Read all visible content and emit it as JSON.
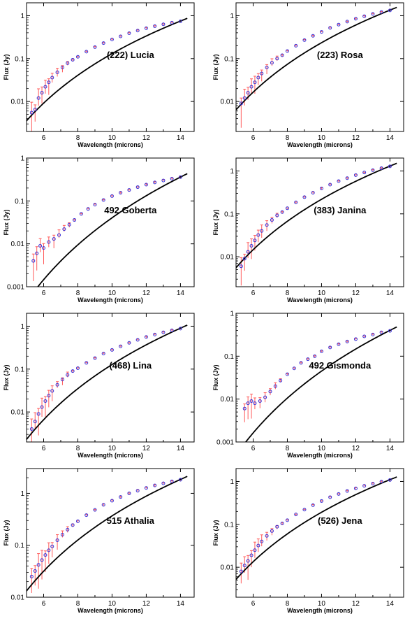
{
  "colors": {
    "model_curve": "#000000",
    "error_bars": "#ff5a5a",
    "data_points": "#3a2fd6",
    "axes": "#000000"
  },
  "chart_data": [
    {
      "type": "scatter",
      "annotation": "(222) Lucia",
      "xlabel": "Wavelength (microns)",
      "ylabel": "Flux (Jy)",
      "xlim": [
        5,
        14.8
      ],
      "ylim": [
        0.002,
        2
      ],
      "y_scale": "log",
      "x_ticks": [
        6,
        8,
        10,
        12,
        14
      ],
      "y_ticks": [
        0.01,
        0.1,
        1
      ],
      "y_tick_labels": [
        "0.01",
        "0.1",
        "1"
      ],
      "grid": false,
      "model": {
        "f14": 0.75,
        "p": 5.2
      },
      "x": [
        5.3,
        5.5,
        5.7,
        5.9,
        6.1,
        6.3,
        6.5,
        6.8,
        7.1,
        7.4,
        7.7,
        8.0,
        8.5,
        9.0,
        9.5,
        10.0,
        10.5,
        11.0,
        11.5,
        12.0,
        12.5,
        13.0,
        13.5,
        14.0
      ],
      "y": [
        0.0055,
        0.0065,
        0.012,
        0.016,
        0.022,
        0.028,
        0.036,
        0.048,
        0.062,
        0.078,
        0.094,
        0.11,
        0.145,
        0.185,
        0.23,
        0.28,
        0.33,
        0.39,
        0.45,
        0.51,
        0.57,
        0.63,
        0.69,
        0.74
      ]
    },
    {
      "type": "scatter",
      "annotation": "(223) Rosa",
      "xlabel": "Wavelength (microns)",
      "ylabel": "Flux (Jy)",
      "xlim": [
        5,
        14.8
      ],
      "ylim": [
        0.002,
        2
      ],
      "y_scale": "log",
      "x_ticks": [
        6,
        8,
        10,
        12,
        14
      ],
      "y_ticks": [
        0.01,
        0.1,
        1
      ],
      "y_tick_labels": [
        "0.01",
        "0.1",
        "1"
      ],
      "grid": false,
      "model": {
        "f14": 1.35,
        "p": 5.2
      },
      "x": [
        5.3,
        5.5,
        5.7,
        5.9,
        6.1,
        6.3,
        6.5,
        6.8,
        7.1,
        7.4,
        7.7,
        8.0,
        8.5,
        9.0,
        9.5,
        10.0,
        10.5,
        11.0,
        11.5,
        12.0,
        12.5,
        13.0,
        13.5,
        14.0
      ],
      "y": [
        0.009,
        0.012,
        0.016,
        0.022,
        0.028,
        0.036,
        0.045,
        0.062,
        0.08,
        0.1,
        0.12,
        0.15,
        0.2,
        0.27,
        0.34,
        0.42,
        0.52,
        0.62,
        0.73,
        0.85,
        0.97,
        1.1,
        1.22,
        1.33
      ]
    },
    {
      "type": "scatter",
      "annotation": "492 Goberta",
      "xlabel": "Wavelength (microns)",
      "ylabel": "Flux (Jy)",
      "xlim": [
        5,
        14.8
      ],
      "ylim": [
        0.001,
        1
      ],
      "y_scale": "log",
      "x_ticks": [
        6,
        8,
        10,
        12,
        14
      ],
      "y_ticks": [
        0.001,
        0.01,
        0.1,
        1
      ],
      "y_tick_labels": [
        "0.001",
        "0.01",
        "0.1",
        "1"
      ],
      "grid": false,
      "model": {
        "f14": 0.36,
        "p": 6.5
      },
      "x": [
        5.4,
        5.6,
        5.8,
        6.0,
        6.3,
        6.6,
        6.9,
        7.2,
        7.5,
        7.8,
        8.2,
        8.6,
        9.0,
        9.5,
        10.0,
        10.5,
        11.0,
        11.5,
        12.0,
        12.5,
        13.0,
        13.5,
        14.0
      ],
      "y": [
        0.004,
        0.006,
        0.009,
        0.008,
        0.011,
        0.013,
        0.016,
        0.022,
        0.028,
        0.036,
        0.05,
        0.065,
        0.082,
        0.105,
        0.13,
        0.155,
        0.18,
        0.21,
        0.24,
        0.27,
        0.3,
        0.33,
        0.36
      ]
    },
    {
      "type": "scatter",
      "annotation": "(383) Janina",
      "xlabel": "Wavelength (microns)",
      "ylabel": "Flux (Jy)",
      "xlim": [
        5,
        14.8
      ],
      "ylim": [
        0.002,
        2
      ],
      "y_scale": "log",
      "x_ticks": [
        6,
        8,
        10,
        12,
        14
      ],
      "y_ticks": [
        0.01,
        0.1,
        1
      ],
      "y_tick_labels": [
        "0.01",
        "0.1",
        "1"
      ],
      "grid": false,
      "model": {
        "f14": 1.3,
        "p": 5.3
      },
      "x": [
        5.3,
        5.5,
        5.7,
        5.9,
        6.1,
        6.3,
        6.5,
        6.8,
        7.1,
        7.4,
        7.7,
        8.0,
        8.5,
        9.0,
        9.5,
        10.0,
        10.5,
        11.0,
        11.5,
        12.0,
        12.5,
        13.0,
        13.5,
        14.0
      ],
      "y": [
        0.006,
        0.009,
        0.013,
        0.018,
        0.024,
        0.032,
        0.04,
        0.055,
        0.072,
        0.092,
        0.11,
        0.135,
        0.185,
        0.245,
        0.31,
        0.39,
        0.48,
        0.58,
        0.68,
        0.8,
        0.92,
        1.04,
        1.16,
        1.28
      ]
    },
    {
      "type": "scatter",
      "annotation": "(468) Lina",
      "xlabel": "Wavelength (microns)",
      "ylabel": "Flux (Jy)",
      "xlim": [
        5,
        14.8
      ],
      "ylim": [
        0.002,
        2
      ],
      "y_scale": "log",
      "x_ticks": [
        6,
        8,
        10,
        12,
        14
      ],
      "y_ticks": [
        0.01,
        0.1,
        1
      ],
      "y_tick_labels": [
        "0.01",
        "0.1",
        "1"
      ],
      "grid": false,
      "model": {
        "f14": 0.9,
        "p": 5.8
      },
      "x": [
        5.3,
        5.5,
        5.7,
        5.9,
        6.1,
        6.3,
        6.5,
        6.8,
        7.1,
        7.4,
        7.7,
        8.0,
        8.5,
        9.0,
        9.5,
        10.0,
        10.5,
        11.0,
        11.5,
        12.0,
        12.5,
        13.0,
        13.5,
        14.0
      ],
      "y": [
        0.004,
        0.006,
        0.009,
        0.013,
        0.018,
        0.024,
        0.031,
        0.043,
        0.057,
        0.073,
        0.09,
        0.105,
        0.14,
        0.18,
        0.23,
        0.28,
        0.34,
        0.41,
        0.48,
        0.56,
        0.64,
        0.72,
        0.8,
        0.88
      ]
    },
    {
      "type": "scatter",
      "annotation": "492 Gismonda",
      "xlabel": "Wavelength (microns)",
      "ylabel": "Flux (Jy)",
      "xlim": [
        5,
        14.8
      ],
      "ylim": [
        0.001,
        1
      ],
      "y_scale": "log",
      "x_ticks": [
        6,
        8,
        10,
        12,
        14
      ],
      "y_ticks": [
        0.001,
        0.01,
        0.1,
        1
      ],
      "y_tick_labels": [
        "0.001",
        "0.01",
        "0.1",
        "1"
      ],
      "grid": false,
      "model": {
        "f14": 0.4,
        "p": 6.5
      },
      "x": [
        5.5,
        5.7,
        5.9,
        6.1,
        6.4,
        6.7,
        7.0,
        7.3,
        7.6,
        8.0,
        8.4,
        8.8,
        9.2,
        9.6,
        10.0,
        10.5,
        11.0,
        11.5,
        12.0,
        12.5,
        13.0,
        13.5,
        14.0
      ],
      "y": [
        0.006,
        0.008,
        0.009,
        0.008,
        0.009,
        0.011,
        0.015,
        0.02,
        0.027,
        0.038,
        0.052,
        0.07,
        0.085,
        0.1,
        0.13,
        0.16,
        0.19,
        0.22,
        0.25,
        0.29,
        0.32,
        0.36,
        0.39
      ]
    },
    {
      "type": "scatter",
      "annotation": "515 Athalia",
      "xlabel": "Wavelength (microns)",
      "ylabel": "Flux (Jy)",
      "xlim": [
        5,
        14.8
      ],
      "ylim": [
        0.01,
        3
      ],
      "y_scale": "log",
      "x_ticks": [
        6,
        8,
        10,
        12,
        14
      ],
      "y_ticks": [
        0.01,
        0.1,
        1
      ],
      "y_tick_labels": [
        "0.01",
        "0.1",
        "1"
      ],
      "grid": false,
      "model": {
        "f14": 1.85,
        "p": 4.8
      },
      "x": [
        5.3,
        5.5,
        5.7,
        5.9,
        6.1,
        6.3,
        6.5,
        6.8,
        7.1,
        7.4,
        7.7,
        8.0,
        8.5,
        9.0,
        9.5,
        10.0,
        10.5,
        11.0,
        11.5,
        12.0,
        12.5,
        13.0,
        13.5,
        14.0
      ],
      "y": [
        0.025,
        0.032,
        0.042,
        0.052,
        0.065,
        0.08,
        0.095,
        0.125,
        0.16,
        0.2,
        0.245,
        0.29,
        0.38,
        0.48,
        0.6,
        0.72,
        0.85,
        1.0,
        1.12,
        1.27,
        1.42,
        1.56,
        1.7,
        1.83
      ]
    },
    {
      "type": "scatter",
      "annotation": "(526) Jena",
      "xlabel": "Wavelength (microns)",
      "ylabel": "Flux (Jy)",
      "xlim": [
        5,
        14.8
      ],
      "ylim": [
        0.002,
        2
      ],
      "y_scale": "log",
      "x_ticks": [
        6,
        8,
        10,
        12,
        14
      ],
      "y_ticks": [
        0.01,
        0.1,
        1
      ],
      "y_tick_labels": [
        "0.01",
        "0.1",
        "1"
      ],
      "grid": false,
      "model": {
        "f14": 1.1,
        "p": 5.2
      },
      "x": [
        5.3,
        5.5,
        5.7,
        5.9,
        6.1,
        6.3,
        6.5,
        6.8,
        7.1,
        7.4,
        7.7,
        8.0,
        8.5,
        9.0,
        9.5,
        10.0,
        10.5,
        11.0,
        11.5,
        12.0,
        12.5,
        13.0,
        13.5,
        14.0
      ],
      "y": [
        0.008,
        0.011,
        0.014,
        0.019,
        0.025,
        0.032,
        0.04,
        0.054,
        0.07,
        0.088,
        0.105,
        0.125,
        0.17,
        0.22,
        0.28,
        0.35,
        0.43,
        0.51,
        0.6,
        0.69,
        0.79,
        0.89,
        0.99,
        1.08
      ]
    }
  ]
}
